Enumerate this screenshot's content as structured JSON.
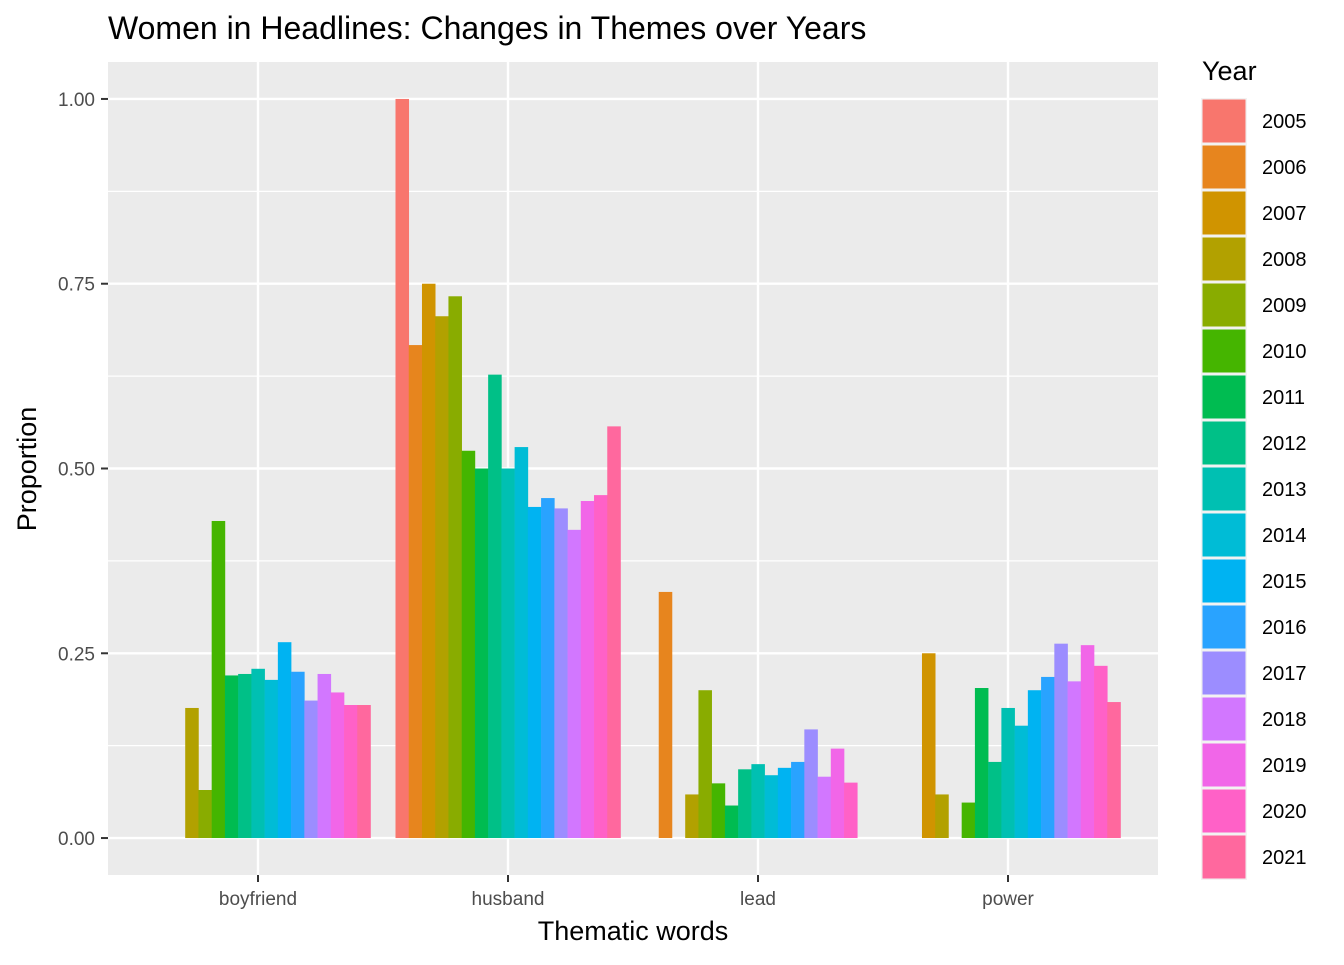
{
  "chart_data": {
    "type": "bar",
    "title": "Women in Headlines: Changes in Themes over Years",
    "xlabel": "Thematic words",
    "ylabel": "Proportion",
    "categories": [
      "boyfriend",
      "husband",
      "lead",
      "power"
    ],
    "ylim": [
      -0.05,
      1.05
    ],
    "y_ticks": [
      "0.00",
      "0.25",
      "0.50",
      "0.75",
      "1.00"
    ],
    "grid": true,
    "legend_position": "right",
    "legend_title": "Year",
    "series": [
      {
        "name": "2005",
        "color": "#F8766D",
        "values": [
          null,
          1.0,
          null,
          null
        ]
      },
      {
        "name": "2006",
        "color": "#E7851E",
        "values": [
          null,
          0.667,
          0.333,
          null
        ]
      },
      {
        "name": "2007",
        "color": "#D09400",
        "values": [
          null,
          0.75,
          null,
          0.25
        ]
      },
      {
        "name": "2008",
        "color": "#B2A100",
        "values": [
          0.176,
          0.706,
          0.059,
          0.059
        ]
      },
      {
        "name": "2009",
        "color": "#89AC00",
        "values": [
          0.065,
          0.733,
          0.2,
          null
        ]
      },
      {
        "name": "2010",
        "color": "#45B500",
        "values": [
          0.429,
          0.524,
          0.074,
          0.048
        ]
      },
      {
        "name": "2011",
        "color": "#00BC51",
        "values": [
          0.22,
          0.5,
          0.044,
          0.203
        ]
      },
      {
        "name": "2012",
        "color": "#00C087",
        "values": [
          0.222,
          0.627,
          0.093,
          0.103
        ]
      },
      {
        "name": "2013",
        "color": "#00C0B2",
        "values": [
          0.229,
          0.5,
          0.1,
          0.176
        ]
      },
      {
        "name": "2014",
        "color": "#00BCD6",
        "values": [
          0.214,
          0.529,
          0.085,
          0.152
        ]
      },
      {
        "name": "2015",
        "color": "#00B3F2",
        "values": [
          0.265,
          0.448,
          0.095,
          0.2
        ]
      },
      {
        "name": "2016",
        "color": "#29A3FF",
        "values": [
          0.225,
          0.46,
          0.103,
          0.218
        ]
      },
      {
        "name": "2017",
        "color": "#9C8DFF",
        "values": [
          0.186,
          0.446,
          0.147,
          0.263
        ]
      },
      {
        "name": "2018",
        "color": "#D277FF",
        "values": [
          0.222,
          0.417,
          0.083,
          0.212
        ]
      },
      {
        "name": "2019",
        "color": "#F166E8",
        "values": [
          0.197,
          0.456,
          0.121,
          0.261
        ]
      },
      {
        "name": "2020",
        "color": "#FF61C7",
        "values": [
          0.18,
          0.464,
          0.075,
          0.233
        ]
      },
      {
        "name": "2021",
        "color": "#FF689E",
        "values": [
          0.18,
          0.557,
          null,
          0.184
        ]
      }
    ]
  }
}
